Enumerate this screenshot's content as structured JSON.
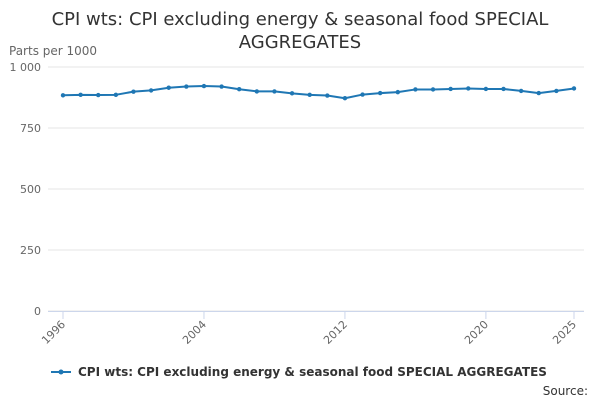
{
  "title_lines": [
    "CPI wts: CPI excluding energy & seasonal food SPECIAL",
    "AGGREGATES"
  ],
  "source_label": "Source:",
  "chart_data": {
    "type": "line",
    "title": "CPI wts: CPI excluding energy & seasonal food SPECIAL AGGREGATES",
    "ylabel": "Parts per 1000",
    "xlabel": "",
    "ylim": [
      0,
      1000
    ],
    "xlim": [
      1996,
      2025
    ],
    "y_ticks": [
      0,
      250,
      500,
      750,
      1000
    ],
    "y_tick_labels": [
      "0",
      "250",
      "500",
      "750",
      "1 000"
    ],
    "x_ticks": [
      1996,
      2004,
      2012,
      2020,
      2025
    ],
    "x_tick_labels": [
      "1996",
      "2004",
      "2012",
      "2020",
      "2025"
    ],
    "legend_placement": "bottom",
    "colors": {
      "series": "#1f77b4",
      "grid": "#e6e6e6",
      "axis": "#ccd6eb"
    },
    "series": [
      {
        "name": "CPI wts: CPI excluding energy & seasonal food SPECIAL AGGREGATES",
        "x": [
          1996,
          1997,
          1998,
          1999,
          2000,
          2001,
          2002,
          2003,
          2004,
          2005,
          2006,
          2007,
          2008,
          2009,
          2010,
          2011,
          2012,
          2013,
          2014,
          2015,
          2016,
          2017,
          2018,
          2019,
          2020,
          2021,
          2022,
          2023,
          2024,
          2025
        ],
        "values": [
          884,
          886,
          885,
          886,
          899,
          904,
          915,
          920,
          922,
          920,
          909,
          900,
          900,
          892,
          886,
          883,
          872,
          887,
          893,
          897,
          908,
          908,
          910,
          912,
          910,
          910,
          902,
          893,
          902,
          912
        ]
      }
    ]
  }
}
